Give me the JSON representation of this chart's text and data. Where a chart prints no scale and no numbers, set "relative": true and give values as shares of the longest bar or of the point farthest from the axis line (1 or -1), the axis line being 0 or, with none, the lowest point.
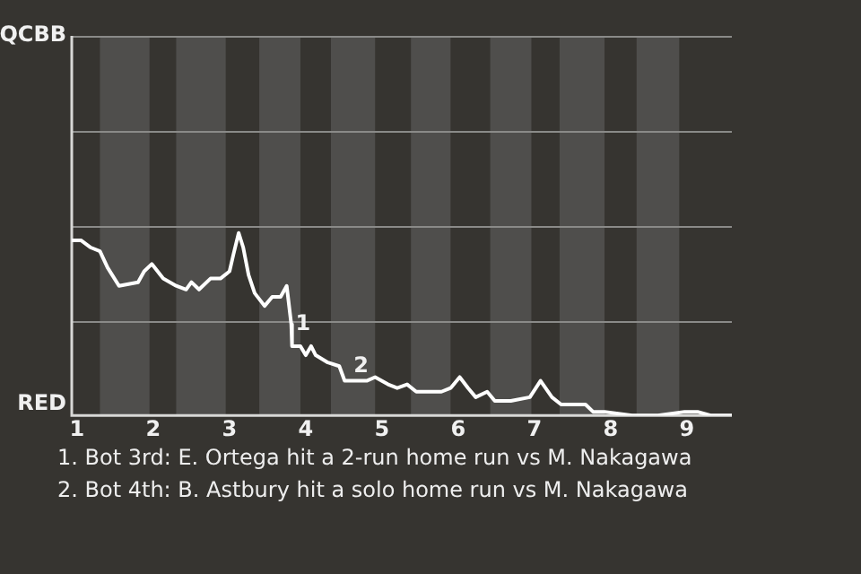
{
  "chart_data": {
    "type": "line",
    "relative": true,
    "x": [
      0.93,
      1.05,
      1.18,
      1.3,
      1.4,
      1.55,
      1.8,
      1.88,
      1.98,
      2.13,
      2.3,
      2.43,
      2.5,
      2.6,
      2.75,
      2.88,
      3.0,
      3.05,
      3.12,
      3.18,
      3.25,
      3.33,
      3.46,
      3.56,
      3.67,
      3.75,
      3.81,
      3.82,
      3.93,
      4.0,
      4.07,
      4.13,
      4.29,
      4.44,
      4.51,
      4.62,
      4.8,
      4.91,
      5.08,
      5.2,
      5.33,
      5.45,
      5.78,
      5.9,
      6.02,
      6.13,
      6.23,
      6.38,
      6.48,
      6.69,
      6.94,
      7.08,
      7.23,
      7.35,
      7.48,
      7.67,
      7.77,
      7.92,
      8.28,
      8.62,
      8.97,
      9.14,
      9.31,
      9.59
    ],
    "series": [
      {
        "color": "#ffffff",
        "values": [
          0.96,
          0.96,
          0.92,
          0.9,
          0.81,
          0.71,
          0.73,
          0.79,
          0.83,
          0.75,
          0.71,
          0.69,
          0.73,
          0.69,
          0.75,
          0.75,
          0.79,
          0.88,
          1,
          0.92,
          0.77,
          0.67,
          0.6,
          0.65,
          0.65,
          0.71,
          0.5,
          0.38,
          0.38,
          0.33,
          0.38,
          0.33,
          0.29,
          0.27,
          0.19,
          0.19,
          0.19,
          0.21,
          0.17,
          0.15,
          0.17,
          0.13,
          0.13,
          0.15,
          0.21,
          0.15,
          0.1,
          0.13,
          0.08,
          0.08,
          0.1,
          0.19,
          0.1,
          0.06,
          0.06,
          0.06,
          0.02,
          0.02,
          0,
          0,
          0.02,
          0.02,
          0,
          0
        ]
      }
    ],
    "xlim": [
      0.93,
      9.59
    ],
    "xticks": [
      1,
      2,
      3,
      4,
      5,
      6,
      7,
      8,
      9
    ],
    "legend": false,
    "marker": "none",
    "ref_lines": [
      {
        "axis": "y",
        "value": 0.52,
        "color": "#8a8a88"
      },
      {
        "axis": "y",
        "value": 1.04,
        "color": "#8a8a88"
      },
      {
        "axis": "y",
        "value": 1.56,
        "color": "#8a8a88"
      },
      {
        "axis": "y",
        "value": 2.08,
        "color": "#8a8a88"
      }
    ],
    "bands": [
      {
        "axis": "x",
        "from": 1.3,
        "to": 1.95,
        "color": "#4f4e4c"
      },
      {
        "axis": "x",
        "from": 2.3,
        "to": 2.95,
        "color": "#4f4e4c"
      },
      {
        "axis": "x",
        "from": 3.39,
        "to": 3.93,
        "color": "#4f4e4c"
      },
      {
        "axis": "x",
        "from": 4.33,
        "to": 4.91,
        "color": "#4f4e4c"
      },
      {
        "axis": "x",
        "from": 5.38,
        "to": 5.9,
        "color": "#4f4e4c"
      },
      {
        "axis": "x",
        "from": 6.42,
        "to": 6.96,
        "color": "#4f4e4c"
      },
      {
        "axis": "x",
        "from": 7.33,
        "to": 7.92,
        "color": "#4f4e4c"
      },
      {
        "axis": "x",
        "from": 8.34,
        "to": 8.9,
        "color": "#4f4e4c"
      }
    ],
    "annotations": [
      "QCBB",
      "RED",
      {
        "text": "1",
        "x": 3.82,
        "y": 0.42
      },
      {
        "text": "2",
        "x": 4.58,
        "y": 0.19
      },
      "1. Bot 3rd: E. Ortega hit a 2-run home run vs M. Nakagawa",
      "2. Bot 4th: B. Astbury hit a solo home run vs M. Nakagawa"
    ]
  }
}
